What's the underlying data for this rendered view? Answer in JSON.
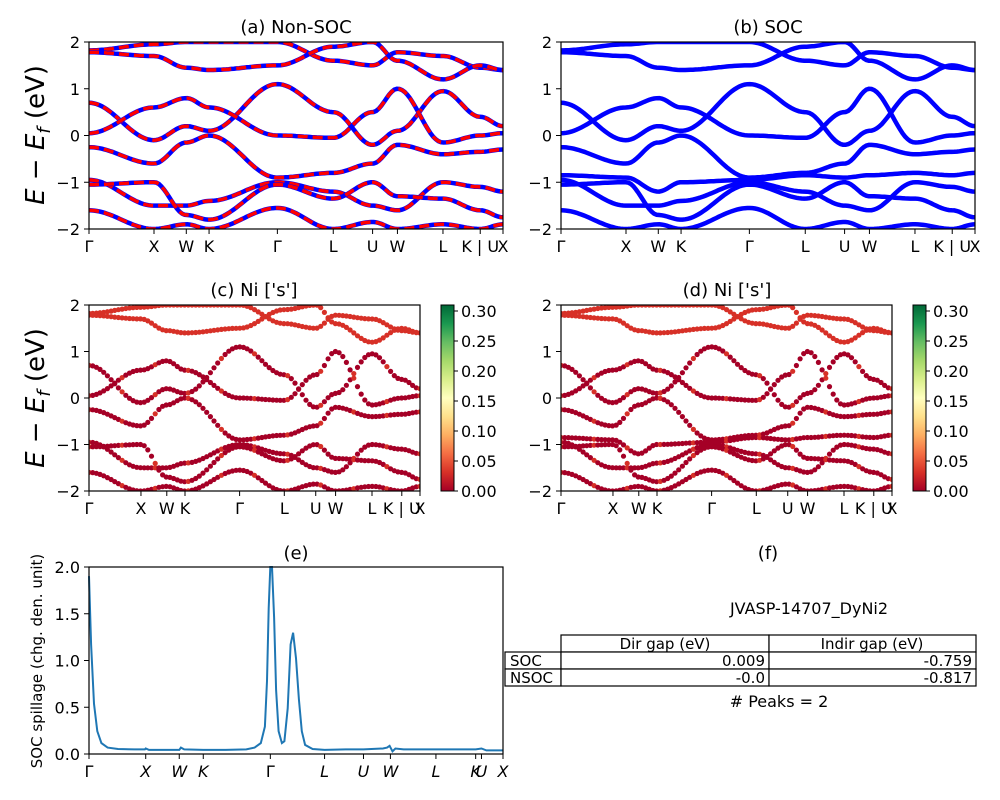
{
  "chart_data": [
    {
      "type": "line",
      "panel": "a",
      "title": "(a) Non-SOC",
      "ylabel": "E − E_f (eV)",
      "ylim": [
        -2,
        2
      ],
      "yticks": [
        "2",
        "1",
        "0",
        "−1",
        "−2"
      ],
      "kpath": [
        "Γ",
        "X",
        "W",
        "K",
        "Γ",
        "L",
        "U",
        "W",
        "L",
        "K | U",
        "X"
      ],
      "kpath_pos": [
        0,
        0.157,
        0.235,
        0.29,
        0.455,
        0.59,
        0.685,
        0.745,
        0.855,
        0.945,
        1
      ],
      "series": [
        {
          "color": "#0000ff",
          "style": "solid"
        },
        {
          "color": "#ff0000",
          "style": "dashed"
        }
      ],
      "bands": [
        [
          1.82,
          1.95,
          2.0,
          2.0,
          2.0,
          1.6,
          1.5,
          1.78,
          1.7,
          1.45,
          1.4
        ],
        [
          1.78,
          1.7,
          1.45,
          1.4,
          1.5,
          1.9,
          2.0,
          1.6,
          1.2,
          1.5,
          1.4
        ],
        [
          0.7,
          -0.1,
          0.2,
          0.1,
          1.1,
          0.5,
          -0.2,
          0.1,
          0.95,
          0.4,
          0.2
        ],
        [
          0.05,
          0.6,
          0.8,
          0.6,
          0.0,
          -0.05,
          0.5,
          1.0,
          -0.15,
          0.0,
          0.05
        ],
        [
          -0.25,
          -0.6,
          -0.15,
          0.0,
          -0.9,
          -0.8,
          -0.6,
          -0.2,
          -0.4,
          -0.35,
          -0.3
        ],
        [
          -0.95,
          -1.5,
          -1.5,
          -1.4,
          -1.0,
          -1.2,
          -1.5,
          -1.6,
          -1.0,
          -1.1,
          -1.2
        ],
        [
          -1.05,
          -1.0,
          -1.7,
          -1.8,
          -1.05,
          -1.35,
          -1.0,
          -1.3,
          -1.35,
          -1.6,
          -1.75
        ],
        [
          -1.6,
          -2.0,
          -1.9,
          -2.0,
          -1.55,
          -2.0,
          -1.85,
          -2.0,
          -1.9,
          -2.0,
          -1.9
        ]
      ]
    },
    {
      "type": "line",
      "panel": "b",
      "title": "(b) SOC",
      "ylim": [
        -2,
        2
      ],
      "yticks": [
        "2",
        "1",
        "0",
        "−1",
        "−2"
      ],
      "kpath": [
        "Γ",
        "X",
        "W",
        "K",
        "Γ",
        "L",
        "U",
        "W",
        "L",
        "K | U",
        "X"
      ],
      "kpath_pos": [
        0,
        0.157,
        0.235,
        0.29,
        0.455,
        0.59,
        0.685,
        0.745,
        0.855,
        0.945,
        1
      ],
      "series": [
        {
          "color": "#0000ff",
          "style": "solid"
        }
      ],
      "bands": [
        [
          1.82,
          1.95,
          2.0,
          2.0,
          2.0,
          1.6,
          1.5,
          1.78,
          1.7,
          1.45,
          1.4
        ],
        [
          1.78,
          1.7,
          1.45,
          1.4,
          1.5,
          1.9,
          2.0,
          1.6,
          1.2,
          1.5,
          1.4
        ],
        [
          0.7,
          -0.1,
          0.2,
          0.1,
          1.1,
          0.5,
          -0.2,
          0.1,
          0.95,
          0.4,
          0.2
        ],
        [
          0.05,
          0.6,
          0.8,
          0.6,
          0.0,
          -0.05,
          0.5,
          1.0,
          -0.15,
          0.0,
          0.05
        ],
        [
          -0.25,
          -0.6,
          -0.15,
          0.0,
          -0.9,
          -0.8,
          -0.6,
          -0.2,
          -0.4,
          -0.35,
          -0.3
        ],
        [
          -0.95,
          -1.5,
          -1.5,
          -1.4,
          -1.0,
          -1.2,
          -1.5,
          -1.6,
          -1.0,
          -1.1,
          -1.2
        ],
        [
          -1.05,
          -1.0,
          -1.7,
          -1.8,
          -1.05,
          -1.35,
          -1.0,
          -1.3,
          -1.35,
          -1.6,
          -1.75
        ],
        [
          -0.85,
          -0.9,
          -1.2,
          -1.0,
          -0.95,
          -0.85,
          -0.9,
          -0.85,
          -0.8,
          -0.85,
          -0.8
        ],
        [
          -1.6,
          -2.0,
          -1.9,
          -2.0,
          -1.55,
          -2.0,
          -1.85,
          -2.0,
          -1.9,
          -2.0,
          -1.9
        ]
      ]
    },
    {
      "type": "scatter",
      "panel": "c",
      "title": "(c)  Ni ['s']",
      "ylabel": "E − E_f (eV)",
      "ylim": [
        -2,
        2
      ],
      "yticks": [
        "2",
        "1",
        "0",
        "−1",
        "−2"
      ],
      "kpath": [
        "Γ",
        "X",
        "W",
        "K",
        "Γ",
        "L",
        "U",
        "W",
        "L",
        "K | U",
        "X"
      ],
      "kpath_pos": [
        0,
        0.157,
        0.235,
        0.29,
        0.455,
        0.59,
        0.685,
        0.745,
        0.855,
        0.945,
        1
      ],
      "colorbar": {
        "min": 0.0,
        "max": 0.31,
        "ticks": [
          "0.30",
          "0.25",
          "0.20",
          "0.15",
          "0.10",
          "0.05",
          "0.00"
        ],
        "colormap": "RdYlGn"
      }
    },
    {
      "type": "scatter",
      "panel": "d",
      "title": "(d) Ni ['s']",
      "ylim": [
        -2,
        2
      ],
      "yticks": [
        "2",
        "1",
        "0",
        "−1",
        "−2"
      ],
      "kpath": [
        "Γ",
        "X",
        "W",
        "K",
        "Γ",
        "L",
        "U",
        "W",
        "L",
        "K | U",
        "X"
      ],
      "kpath_pos": [
        0,
        0.157,
        0.235,
        0.29,
        0.455,
        0.59,
        0.685,
        0.745,
        0.855,
        0.945,
        1
      ],
      "colorbar": {
        "min": 0.0,
        "max": 0.31,
        "ticks": [
          "0.30",
          "0.25",
          "0.20",
          "0.15",
          "0.10",
          "0.05",
          "0.00"
        ],
        "colormap": "RdYlGn"
      }
    },
    {
      "type": "line",
      "panel": "e",
      "title": "(e)",
      "ylabel": "SOC spillage (chg. den. unit)",
      "ylim": [
        0,
        2.05
      ],
      "yticks": [
        "2.0",
        "1.5",
        "1.0",
        "0.5",
        "0.0"
      ],
      "kpath": [
        "Γ",
        "X",
        "W",
        "K",
        "Γ",
        "L",
        "U",
        "W",
        "L",
        "K",
        "U",
        "X"
      ],
      "kpath_pos": [
        0,
        0.137,
        0.218,
        0.276,
        0.438,
        0.569,
        0.663,
        0.728,
        0.838,
        0.934,
        0.948,
        1
      ],
      "series": [
        {
          "color": "#1f77b4",
          "values": [
            [
              0.0,
              1.95
            ],
            [
              0.005,
              1.2
            ],
            [
              0.012,
              0.55
            ],
            [
              0.02,
              0.25
            ],
            [
              0.03,
              0.12
            ],
            [
              0.045,
              0.07
            ],
            [
              0.07,
              0.055
            ],
            [
              0.11,
              0.05
            ],
            [
              0.135,
              0.05
            ],
            [
              0.137,
              0.06
            ],
            [
              0.145,
              0.045
            ],
            [
              0.2,
              0.045
            ],
            [
              0.218,
              0.045
            ],
            [
              0.222,
              0.07
            ],
            [
              0.23,
              0.05
            ],
            [
              0.276,
              0.045
            ],
            [
              0.33,
              0.045
            ],
            [
              0.38,
              0.05
            ],
            [
              0.4,
              0.07
            ],
            [
              0.415,
              0.12
            ],
            [
              0.425,
              0.3
            ],
            [
              0.43,
              0.8
            ],
            [
              0.434,
              1.6
            ],
            [
              0.438,
              2.05
            ],
            [
              0.442,
              2.05
            ],
            [
              0.447,
              1.5
            ],
            [
              0.452,
              0.7
            ],
            [
              0.458,
              0.25
            ],
            [
              0.466,
              0.12
            ],
            [
              0.472,
              0.14
            ],
            [
              0.48,
              0.5
            ],
            [
              0.487,
              1.2
            ],
            [
              0.493,
              1.33
            ],
            [
              0.5,
              1.05
            ],
            [
              0.507,
              0.6
            ],
            [
              0.514,
              0.25
            ],
            [
              0.522,
              0.1
            ],
            [
              0.54,
              0.055
            ],
            [
              0.569,
              0.045
            ],
            [
              0.62,
              0.05
            ],
            [
              0.663,
              0.05
            ],
            [
              0.71,
              0.06
            ],
            [
              0.72,
              0.07
            ],
            [
              0.726,
              0.09
            ],
            [
              0.733,
              0.03
            ],
            [
              0.74,
              0.06
            ],
            [
              0.76,
              0.05
            ],
            [
              0.838,
              0.05
            ],
            [
              0.9,
              0.05
            ],
            [
              0.934,
              0.05
            ],
            [
              0.948,
              0.06
            ],
            [
              0.96,
              0.04
            ],
            [
              1.0,
              0.04
            ]
          ]
        }
      ]
    },
    {
      "type": "table",
      "panel": "f",
      "title": "(f)",
      "caption": "JVASP-14707_DyNi2",
      "columns": [
        "Dir gap (eV)",
        "Indir gap (eV)"
      ],
      "rows": [
        {
          "label": "SOC",
          "values": [
            "0.009",
            "-0.759"
          ]
        },
        {
          "label": "NSOC",
          "values": [
            "-0.0",
            "-0.817"
          ]
        }
      ],
      "footer": "# Peaks = 2"
    }
  ]
}
